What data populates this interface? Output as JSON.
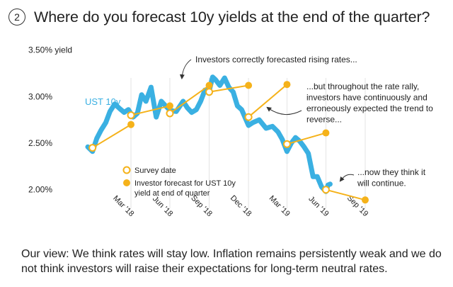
{
  "header": {
    "number": "2",
    "title": "Where do you forecast 10y yields at the end of the quarter?"
  },
  "footer": {
    "text": "Our view: We think rates will stay low. Inflation remains persistently weak and we do not think investors will raise their expectations for long-term neutral rates."
  },
  "colors": {
    "yield": "#3ab0e2",
    "forecast": "#f5b21a",
    "text": "#222222",
    "annotation": "#333333",
    "grid": "#dddddd"
  },
  "chart_data": {
    "type": "line",
    "ylim": [
      1.8,
      3.55
    ],
    "yticks": [
      {
        "value": 3.5,
        "label": "3.50% yield"
      },
      {
        "value": 3.0,
        "label": "3.00%"
      },
      {
        "value": 2.5,
        "label": "2.50%"
      },
      {
        "value": 2.0,
        "label": "2.00%"
      }
    ],
    "xlim": [
      "2017-12-10",
      "2019-10-10"
    ],
    "xticks": [
      {
        "date": "2018-03-31",
        "label": "Mar '18"
      },
      {
        "date": "2018-06-30",
        "label": "Jun '18"
      },
      {
        "date": "2018-09-30",
        "label": "Sep '18"
      },
      {
        "date": "2018-12-31",
        "label": "Dec '18"
      },
      {
        "date": "2019-03-31",
        "label": "Mar '19"
      },
      {
        "date": "2019-06-30",
        "label": "Jun '19"
      },
      {
        "date": "2019-09-30",
        "label": "Sep '19"
      }
    ],
    "series": [
      {
        "name": "UST 10y",
        "kind": "line",
        "points": [
          [
            "2017-12-20",
            2.46
          ],
          [
            "2017-12-31",
            2.41
          ],
          [
            "2018-01-10",
            2.55
          ],
          [
            "2018-01-20",
            2.64
          ],
          [
            "2018-01-31",
            2.72
          ],
          [
            "2018-02-10",
            2.84
          ],
          [
            "2018-02-21",
            2.92
          ],
          [
            "2018-03-05",
            2.87
          ],
          [
            "2018-03-15",
            2.83
          ],
          [
            "2018-03-25",
            2.86
          ],
          [
            "2018-04-05",
            2.78
          ],
          [
            "2018-04-15",
            2.82
          ],
          [
            "2018-04-25",
            3.02
          ],
          [
            "2018-05-05",
            2.95
          ],
          [
            "2018-05-17",
            3.1
          ],
          [
            "2018-05-29",
            2.78
          ],
          [
            "2018-06-10",
            2.95
          ],
          [
            "2018-06-20",
            2.9
          ],
          [
            "2018-07-01",
            2.85
          ],
          [
            "2018-07-15",
            2.84
          ],
          [
            "2018-07-31",
            2.95
          ],
          [
            "2018-08-10",
            2.88
          ],
          [
            "2018-08-20",
            2.83
          ],
          [
            "2018-08-31",
            2.86
          ],
          [
            "2018-09-10",
            2.95
          ],
          [
            "2018-09-20",
            3.07
          ],
          [
            "2018-09-30",
            3.06
          ],
          [
            "2018-10-08",
            3.21
          ],
          [
            "2018-10-15",
            3.18
          ],
          [
            "2018-10-25",
            3.12
          ],
          [
            "2018-11-05",
            3.2
          ],
          [
            "2018-11-15",
            3.1
          ],
          [
            "2018-11-25",
            3.05
          ],
          [
            "2018-12-05",
            2.9
          ],
          [
            "2018-12-15",
            2.86
          ],
          [
            "2018-12-31",
            2.69
          ],
          [
            "2019-01-10",
            2.72
          ],
          [
            "2019-01-25",
            2.75
          ],
          [
            "2019-02-10",
            2.66
          ],
          [
            "2019-02-25",
            2.68
          ],
          [
            "2019-03-10",
            2.62
          ],
          [
            "2019-03-20",
            2.54
          ],
          [
            "2019-03-31",
            2.41
          ],
          [
            "2019-04-10",
            2.5
          ],
          [
            "2019-04-20",
            2.56
          ],
          [
            "2019-04-30",
            2.52
          ],
          [
            "2019-05-10",
            2.46
          ],
          [
            "2019-05-20",
            2.39
          ],
          [
            "2019-05-31",
            2.14
          ],
          [
            "2019-06-10",
            2.14
          ],
          [
            "2019-06-20",
            2.03
          ],
          [
            "2019-06-30",
            1.98
          ],
          [
            "2019-07-05",
            2.05
          ],
          [
            "2019-07-10",
            2.06
          ]
        ]
      },
      {
        "name": "Investor forecast for UST 10y yield at end of quarter",
        "kind": "forecast",
        "segments": [
          [
            [
              "2017-12-31",
              2.45
            ],
            [
              "2018-03-31",
              2.7
            ]
          ],
          [
            [
              "2018-03-31",
              2.8
            ],
            [
              "2018-06-30",
              2.9
            ]
          ],
          [
            [
              "2018-06-30",
              2.82
            ],
            [
              "2018-09-30",
              3.12
            ]
          ],
          [
            [
              "2018-09-30",
              3.05
            ],
            [
              "2018-12-31",
              3.12
            ]
          ],
          [
            [
              "2018-12-31",
              2.78
            ],
            [
              "2019-03-31",
              3.13
            ]
          ],
          [
            [
              "2019-03-31",
              2.49
            ],
            [
              "2019-06-30",
              2.61
            ]
          ],
          [
            [
              "2019-06-30",
              2.0
            ],
            [
              "2019-09-30",
              1.89
            ]
          ]
        ]
      }
    ],
    "legend": [
      {
        "marker": "survey",
        "label": "Survey date"
      },
      {
        "marker": "forecast",
        "label": "Investor forecast for UST 10y yield at end of quarter",
        "lines": [
          "Investor forecast for UST 10y",
          "yield at end of quarter"
        ]
      }
    ],
    "annotations": {
      "series_label": "UST 10y",
      "note1": "Investors correctly forecasted rising rates...",
      "note2": "...but throughout the rate rally, investors have continuously and erroneously expected the trend to reverse...",
      "note2_lines": [
        "...but throughout the rate rally,",
        "investors have continuously and",
        "erroneously expected the trend to",
        "reverse..."
      ],
      "note3": "...now they think it will continue.",
      "note3_lines": [
        "...now they think it",
        "will continue."
      ]
    }
  }
}
